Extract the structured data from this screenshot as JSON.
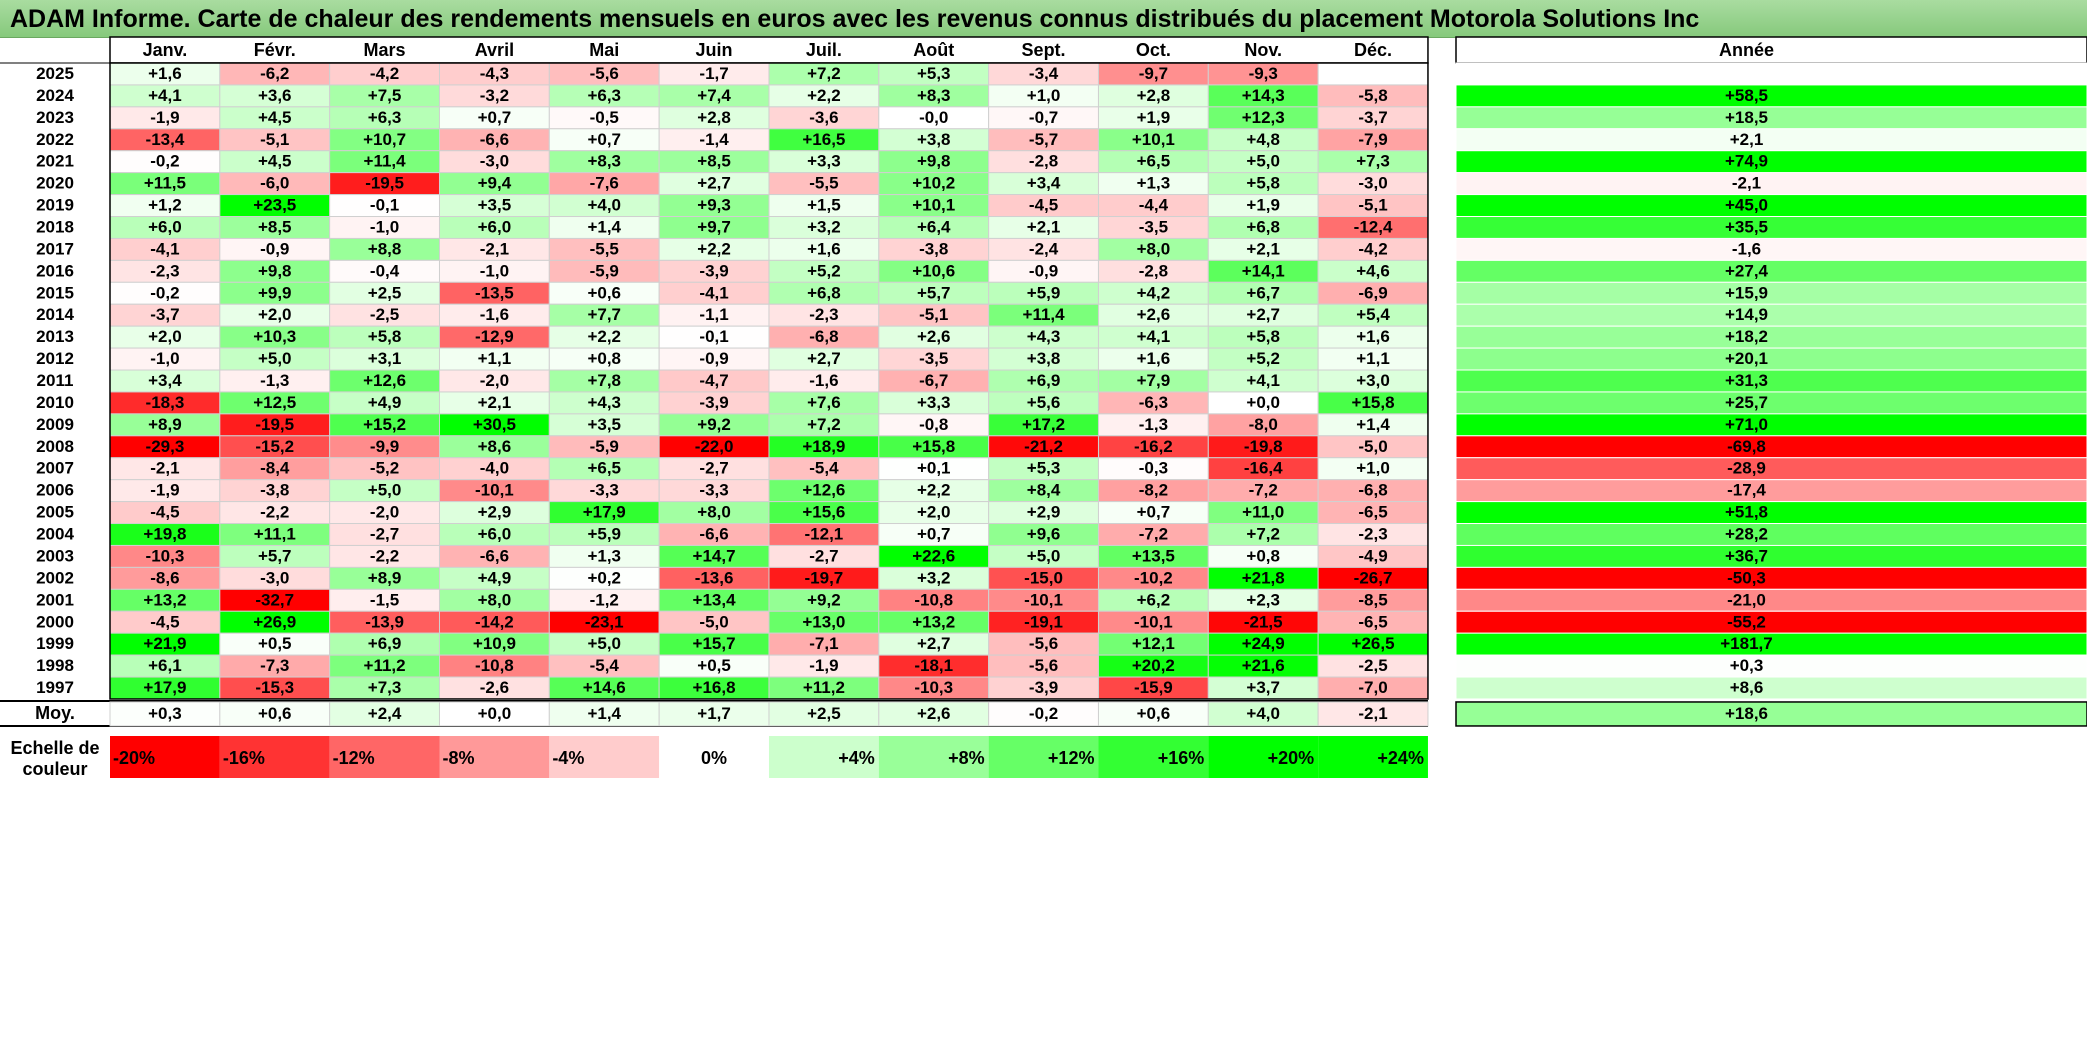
{
  "title": "ADAM Informe. Carte de chaleur des rendements mensuels en euros avec les revenus connus distribués du placement Motorola Solutions Inc",
  "chart_data": {
    "type": "heatmap",
    "months": [
      "Janv.",
      "Févr.",
      "Mars",
      "Avril",
      "Mai",
      "Juin",
      "Juil.",
      "Août",
      "Sept.",
      "Oct.",
      "Nov.",
      "Déc."
    ],
    "year_header": "Année",
    "rows": [
      {
        "year": "2025",
        "values": [
          "+1,6",
          "-6,2",
          "-4,2",
          "-4,3",
          "-5,6",
          "-1,7",
          "+7,2",
          "+5,3",
          "-3,4",
          "-9,7",
          "-9,3",
          ""
        ],
        "annual": ""
      },
      {
        "year": "2024",
        "values": [
          "+4,1",
          "+3,6",
          "+7,5",
          "-3,2",
          "+6,3",
          "+7,4",
          "+2,2",
          "+8,3",
          "+1,0",
          "+2,8",
          "+14,3",
          "-5,8"
        ],
        "annual": "+58,5"
      },
      {
        "year": "2023",
        "values": [
          "-1,9",
          "+4,5",
          "+6,3",
          "+0,7",
          "-0,5",
          "+2,8",
          "-3,6",
          "-0,0",
          "-0,7",
          "+1,9",
          "+12,3",
          "-3,7"
        ],
        "annual": "+18,5"
      },
      {
        "year": "2022",
        "values": [
          "-13,4",
          "-5,1",
          "+10,7",
          "-6,6",
          "+0,7",
          "-1,4",
          "+16,5",
          "+3,8",
          "-5,7",
          "+10,1",
          "+4,8",
          "-7,9"
        ],
        "annual": "+2,1"
      },
      {
        "year": "2021",
        "values": [
          "-0,2",
          "+4,5",
          "+11,4",
          "-3,0",
          "+8,3",
          "+8,5",
          "+3,3",
          "+9,8",
          "-2,8",
          "+6,5",
          "+5,0",
          "+7,3"
        ],
        "annual": "+74,9"
      },
      {
        "year": "2020",
        "values": [
          "+11,5",
          "-6,0",
          "-19,5",
          "+9,4",
          "-7,6",
          "+2,7",
          "-5,5",
          "+10,2",
          "+3,4",
          "+1,3",
          "+5,8",
          "-3,0"
        ],
        "annual": "-2,1"
      },
      {
        "year": "2019",
        "values": [
          "+1,2",
          "+23,5",
          "-0,1",
          "+3,5",
          "+4,0",
          "+9,3",
          "+1,5",
          "+10,1",
          "-4,5",
          "-4,4",
          "+1,9",
          "-5,1"
        ],
        "annual": "+45,0"
      },
      {
        "year": "2018",
        "values": [
          "+6,0",
          "+8,5",
          "-1,0",
          "+6,0",
          "+1,4",
          "+9,7",
          "+3,2",
          "+6,4",
          "+2,1",
          "-3,5",
          "+6,8",
          "-12,4"
        ],
        "annual": "+35,5"
      },
      {
        "year": "2017",
        "values": [
          "-4,1",
          "-0,9",
          "+8,8",
          "-2,1",
          "-5,5",
          "+2,2",
          "+1,6",
          "-3,8",
          "-2,4",
          "+8,0",
          "+2,1",
          "-4,2"
        ],
        "annual": "-1,6"
      },
      {
        "year": "2016",
        "values": [
          "-2,3",
          "+9,8",
          "-0,4",
          "-1,0",
          "-5,9",
          "-3,9",
          "+5,2",
          "+10,6",
          "-0,9",
          "-2,8",
          "+14,1",
          "+4,6"
        ],
        "annual": "+27,4"
      },
      {
        "year": "2015",
        "values": [
          "-0,2",
          "+9,9",
          "+2,5",
          "-13,5",
          "+0,6",
          "-4,1",
          "+6,8",
          "+5,7",
          "+5,9",
          "+4,2",
          "+6,7",
          "-6,9"
        ],
        "annual": "+15,9"
      },
      {
        "year": "2014",
        "values": [
          "-3,7",
          "+2,0",
          "-2,5",
          "-1,6",
          "+7,7",
          "-1,1",
          "-2,3",
          "-5,1",
          "+11,4",
          "+2,6",
          "+2,7",
          "+5,4"
        ],
        "annual": "+14,9"
      },
      {
        "year": "2013",
        "values": [
          "+2,0",
          "+10,3",
          "+5,8",
          "-12,9",
          "+2,2",
          "-0,1",
          "-6,8",
          "+2,6",
          "+4,3",
          "+4,1",
          "+5,8",
          "+1,6"
        ],
        "annual": "+18,2"
      },
      {
        "year": "2012",
        "values": [
          "-1,0",
          "+5,0",
          "+3,1",
          "+1,1",
          "+0,8",
          "-0,9",
          "+2,7",
          "-3,5",
          "+3,8",
          "+1,6",
          "+5,2",
          "+1,1"
        ],
        "annual": "+20,1"
      },
      {
        "year": "2011",
        "values": [
          "+3,4",
          "-1,3",
          "+12,6",
          "-2,0",
          "+7,8",
          "-4,7",
          "-1,6",
          "-6,7",
          "+6,9",
          "+7,9",
          "+4,1",
          "+3,0"
        ],
        "annual": "+31,3"
      },
      {
        "year": "2010",
        "values": [
          "-18,3",
          "+12,5",
          "+4,9",
          "+2,1",
          "+4,3",
          "-3,9",
          "+7,6",
          "+3,3",
          "+5,6",
          "-6,3",
          "+0,0",
          "+15,8"
        ],
        "annual": "+25,7"
      },
      {
        "year": "2009",
        "values": [
          "+8,9",
          "-19,5",
          "+15,2",
          "+30,5",
          "+3,5",
          "+9,2",
          "+7,2",
          "-0,8",
          "+17,2",
          "-1,3",
          "-8,0",
          "+1,4"
        ],
        "annual": "+71,0"
      },
      {
        "year": "2008",
        "values": [
          "-29,3",
          "-15,2",
          "-9,9",
          "+8,6",
          "-5,9",
          "-22,0",
          "+18,9",
          "+15,8",
          "-21,2",
          "-16,2",
          "-19,8",
          "-5,0"
        ],
        "annual": "-69,8"
      },
      {
        "year": "2007",
        "values": [
          "-2,1",
          "-8,4",
          "-5,2",
          "-4,0",
          "+6,5",
          "-2,7",
          "-5,4",
          "+0,1",
          "+5,3",
          "-0,3",
          "-16,4",
          "+1,0"
        ],
        "annual": "-28,9"
      },
      {
        "year": "2006",
        "values": [
          "-1,9",
          "-3,8",
          "+5,0",
          "-10,1",
          "-3,3",
          "-3,3",
          "+12,6",
          "+2,2",
          "+8,4",
          "-8,2",
          "-7,2",
          "-6,8"
        ],
        "annual": "-17,4"
      },
      {
        "year": "2005",
        "values": [
          "-4,5",
          "-2,2",
          "-2,0",
          "+2,9",
          "+17,9",
          "+8,0",
          "+15,6",
          "+2,0",
          "+2,9",
          "+0,7",
          "+11,0",
          "-6,5"
        ],
        "annual": "+51,8"
      },
      {
        "year": "2004",
        "values": [
          "+19,8",
          "+11,1",
          "-2,7",
          "+6,0",
          "+5,9",
          "-6,6",
          "-12,1",
          "+0,7",
          "+9,6",
          "-7,2",
          "+7,2",
          "-2,3"
        ],
        "annual": "+28,2"
      },
      {
        "year": "2003",
        "values": [
          "-10,3",
          "+5,7",
          "-2,2",
          "-6,6",
          "+1,3",
          "+14,7",
          "-2,7",
          "+22,6",
          "+5,0",
          "+13,5",
          "+0,8",
          "-4,9"
        ],
        "annual": "+36,7"
      },
      {
        "year": "2002",
        "values": [
          "-8,6",
          "-3,0",
          "+8,9",
          "+4,9",
          "+0,2",
          "-13,6",
          "-19,7",
          "+3,2",
          "-15,0",
          "-10,2",
          "+21,8",
          "-26,7"
        ],
        "annual": "-50,3"
      },
      {
        "year": "2001",
        "values": [
          "+13,2",
          "-32,7",
          "-1,5",
          "+8,0",
          "-1,2",
          "+13,4",
          "+9,2",
          "-10,8",
          "-10,1",
          "+6,2",
          "+2,3",
          "-8,5"
        ],
        "annual": "-21,0"
      },
      {
        "year": "2000",
        "values": [
          "-4,5",
          "+26,9",
          "-13,9",
          "-14,2",
          "-23,1",
          "-5,0",
          "+13,0",
          "+13,2",
          "-19,1",
          "-10,1",
          "-21,5",
          "-6,5"
        ],
        "annual": "-55,2"
      },
      {
        "year": "1999",
        "values": [
          "+21,9",
          "+0,5",
          "+6,9",
          "+10,9",
          "+5,0",
          "+15,7",
          "-7,1",
          "+2,7",
          "-5,6",
          "+12,1",
          "+24,9",
          "+26,5"
        ],
        "annual": "+181,7"
      },
      {
        "year": "1998",
        "values": [
          "+6,1",
          "-7,3",
          "+11,2",
          "-10,8",
          "-5,4",
          "+0,5",
          "-1,9",
          "-18,1",
          "-5,6",
          "+20,2",
          "+21,6",
          "-2,5"
        ],
        "annual": "+0,3"
      },
      {
        "year": "1997",
        "values": [
          "+17,9",
          "-15,3",
          "+7,3",
          "-2,6",
          "+14,6",
          "+16,8",
          "+11,2",
          "-10,3",
          "-3,9",
          "-15,9",
          "+3,7",
          "-7,0"
        ],
        "annual": "+8,6"
      }
    ],
    "average": {
      "label": "Moy.",
      "values": [
        "+0,3",
        "+0,6",
        "+2,4",
        "+0,0",
        "+1,4",
        "+1,7",
        "+2,5",
        "+2,6",
        "-0,2",
        "+0,6",
        "+4,0",
        "-2,1"
      ],
      "annual": "+18,6"
    },
    "scale": {
      "label_lines": [
        "Echelle de",
        "couleur"
      ],
      "steps": [
        {
          "label": "-20%",
          "value": -20
        },
        {
          "label": "-16%",
          "value": -16
        },
        {
          "label": "-12%",
          "value": -12
        },
        {
          "label": "-8%",
          "value": -8
        },
        {
          "label": "-4%",
          "value": -4
        },
        {
          "label": "0%",
          "value": 0
        },
        {
          "label": "+4%",
          "value": 4
        },
        {
          "label": "+8%",
          "value": 8
        },
        {
          "label": "+12%",
          "value": 12
        },
        {
          "label": "+16%",
          "value": 16
        },
        {
          "label": "+20%",
          "value": 20
        },
        {
          "label": "+24%",
          "value": 24
        }
      ]
    },
    "colors": {
      "negative_max": "#ff0000",
      "positive_max": "#00ff00",
      "neutral": "#ffffff"
    }
  }
}
